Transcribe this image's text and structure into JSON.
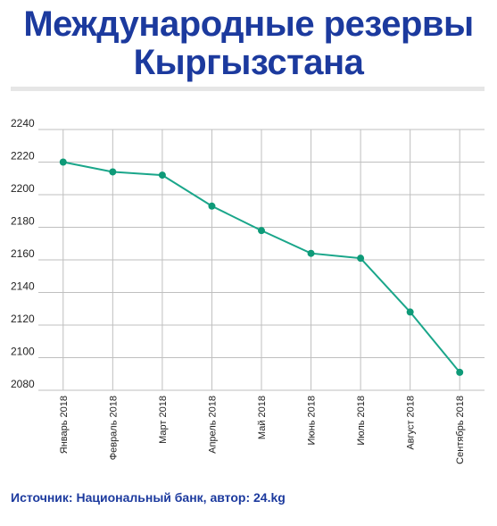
{
  "header": {
    "title_line1": "Международные резервы",
    "title_line2": "Кыргызстана"
  },
  "footer": {
    "source": "Источник: Национальный банк, автор: 24.kg"
  },
  "colors": {
    "title": "#1c3a9e",
    "line": "#1aa68a",
    "marker": "#0e9a78",
    "grid": "#bfbfbf"
  },
  "chart_data": {
    "type": "line",
    "title": "Международные резервы Кыргызстана",
    "xlabel": "",
    "ylabel": "",
    "categories": [
      "Январь 2018",
      "Февраль 2018",
      "Март 2018",
      "Апрель 2018",
      "Май 2018",
      "Июнь 2018",
      "Июль 2018",
      "Август 2018",
      "Сентябрь 2018"
    ],
    "series": [
      {
        "values": [
          2220,
          2214,
          2212,
          2193,
          2178,
          2164,
          2161,
          2128,
          2091
        ]
      }
    ],
    "ylim": [
      2080,
      2240
    ],
    "yticks": [
      2080,
      2100,
      2120,
      2140,
      2160,
      2180,
      2200,
      2220,
      2240
    ],
    "grid": true,
    "legend": "none"
  }
}
